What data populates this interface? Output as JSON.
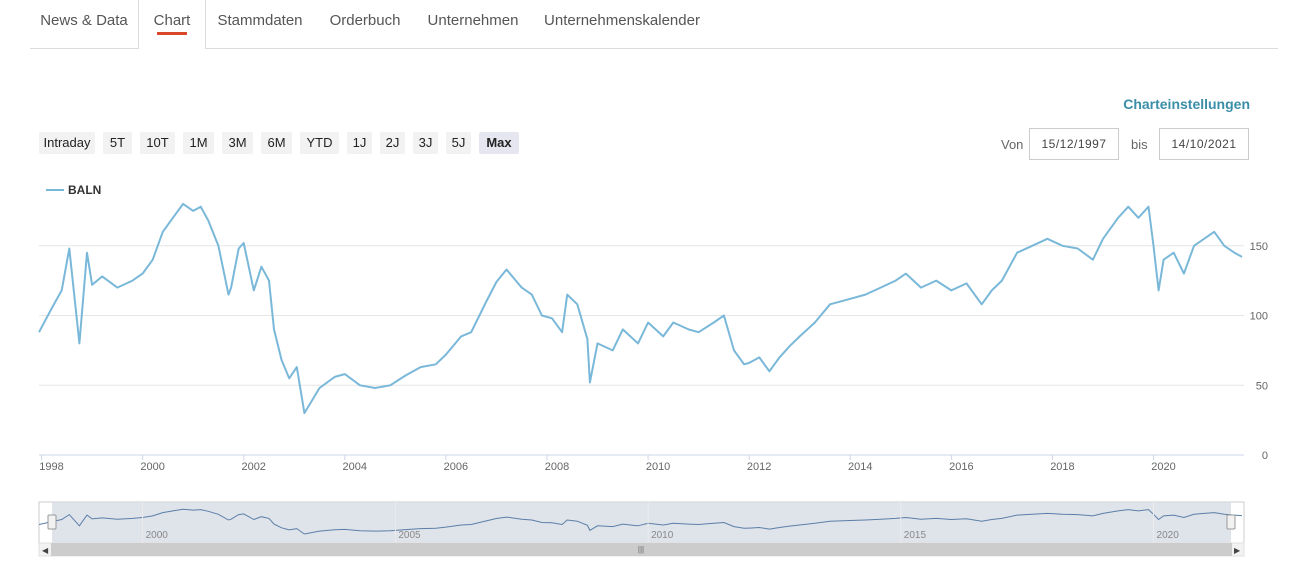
{
  "tabs": [
    {
      "label": "News & Data",
      "active": false
    },
    {
      "label": "Chart",
      "active": true
    },
    {
      "label": "Stammdaten",
      "active": false
    },
    {
      "label": "Orderbuch",
      "active": false
    },
    {
      "label": "Unternehmen",
      "active": false
    },
    {
      "label": "Unternehmenskalender",
      "active": false
    }
  ],
  "settings_label": "Charteinstellungen",
  "ranges": [
    "Intraday",
    "5T",
    "10T",
    "1M",
    "3M",
    "6M",
    "YTD",
    "1J",
    "2J",
    "3J",
    "5J",
    "Max"
  ],
  "active_range": "Max",
  "date_from_label": "Von",
  "date_from": "15/12/1997",
  "date_to_label": "bis",
  "date_to": "14/10/2021",
  "colors": {
    "line": "#7ab8d9",
    "accent": "#d9482a",
    "link": "#3a8ea8",
    "navigator_fill": "#d9dee6"
  },
  "chart_data": {
    "type": "line",
    "series": [
      {
        "name": "BALN",
        "x": [
          1997.95,
          1998.2,
          1998.4,
          1998.55,
          1998.75,
          1998.9,
          1999.0,
          1999.2,
          1999.5,
          1999.8,
          2000.0,
          2000.2,
          2000.4,
          2000.6,
          2000.8,
          2001.0,
          2001.15,
          2001.3,
          2001.5,
          2001.7,
          2001.75,
          2001.9,
          2002.0,
          2002.2,
          2002.35,
          2002.5,
          2002.6,
          2002.75,
          2002.9,
          2003.05,
          2003.2,
          2003.5,
          2003.8,
          2004.0,
          2004.3,
          2004.6,
          2004.9,
          2005.2,
          2005.5,
          2005.8,
          2006.0,
          2006.3,
          2006.5,
          2006.8,
          2007.0,
          2007.2,
          2007.5,
          2007.7,
          2007.9,
          2008.1,
          2008.3,
          2008.4,
          2008.6,
          2008.8,
          2008.85,
          2009.0,
          2009.3,
          2009.5,
          2009.8,
          2010.0,
          2010.3,
          2010.5,
          2010.8,
          2011.0,
          2011.3,
          2011.5,
          2011.7,
          2011.9,
          2012.0,
          2012.2,
          2012.4,
          2012.6,
          2012.8,
          2013.0,
          2013.3,
          2013.6,
          2014.0,
          2014.3,
          2014.6,
          2014.9,
          2015.1,
          2015.4,
          2015.7,
          2016.0,
          2016.3,
          2016.6,
          2016.8,
          2017.0,
          2017.3,
          2017.6,
          2017.9,
          2018.2,
          2018.5,
          2018.8,
          2019.0,
          2019.3,
          2019.5,
          2019.7,
          2019.9,
          2020.0,
          2020.1,
          2020.2,
          2020.4,
          2020.6,
          2020.8,
          2021.0,
          2021.2,
          2021.4,
          2021.6,
          2021.75
        ],
        "y": [
          88,
          105,
          118,
          148,
          80,
          145,
          122,
          128,
          120,
          125,
          130,
          140,
          160,
          170,
          180,
          175,
          178,
          168,
          150,
          115,
          120,
          148,
          152,
          118,
          135,
          125,
          90,
          68,
          55,
          63,
          30,
          48,
          56,
          58,
          50,
          48,
          50,
          57,
          63,
          65,
          72,
          85,
          88,
          110,
          124,
          133,
          120,
          115,
          100,
          98,
          88,
          115,
          108,
          83,
          52,
          80,
          75,
          90,
          80,
          95,
          85,
          95,
          90,
          88,
          95,
          100,
          75,
          65,
          66,
          70,
          60,
          70,
          78,
          85,
          95,
          108,
          112,
          115,
          120,
          125,
          130,
          120,
          125,
          118,
          123,
          108,
          118,
          125,
          145,
          150,
          155,
          150,
          148,
          140,
          155,
          170,
          178,
          170,
          178,
          150,
          118,
          140,
          145,
          130,
          150,
          155,
          160,
          150,
          145,
          142
        ]
      }
    ],
    "ylim": [
      0,
      200
    ],
    "yticks": [
      0,
      50,
      100,
      150
    ],
    "xticks": [
      "1998",
      "2000",
      "2002",
      "2004",
      "2006",
      "2008",
      "2010",
      "2012",
      "2014",
      "2016",
      "2018",
      "2020"
    ],
    "xlim": [
      1997.95,
      2021.79
    ],
    "legend": "top-left",
    "grid": true,
    "navigator_ticks": [
      "2000",
      "2005",
      "2010",
      "2015",
      "2020"
    ]
  }
}
